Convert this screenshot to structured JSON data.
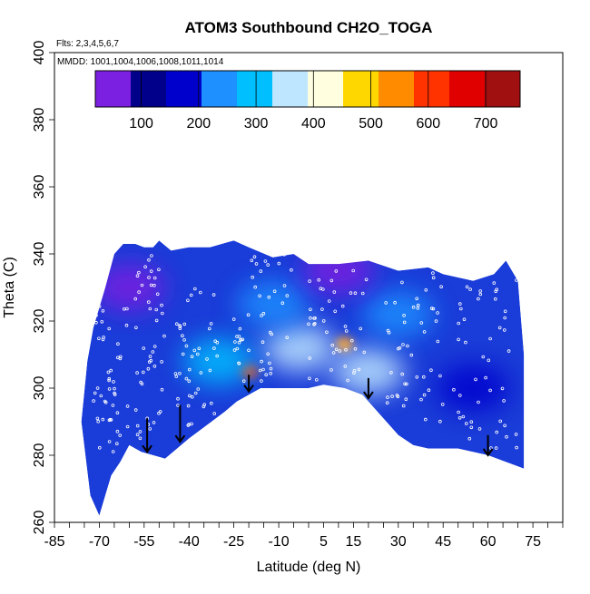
{
  "chart_data": {
    "type": "heatmap",
    "title": "ATOM3 Southbound CH2O_TOGA",
    "subtitle_lines": [
      "Flts: 2,3,4,5,6,7",
      "MMDD: 1001,1004,1006,1008,1011,1014"
    ],
    "xlabel": "Latitude (deg N)",
    "ylabel": "Theta (C)",
    "xlim": [
      -85,
      85
    ],
    "ylim": [
      260,
      400
    ],
    "x_ticks": [
      -85,
      -70,
      -55,
      -40,
      -25,
      -10,
      5,
      15,
      30,
      45,
      60,
      75
    ],
    "y_ticks": [
      260,
      280,
      300,
      320,
      340,
      360,
      380,
      400
    ],
    "colorbar": {
      "vmin": 20,
      "vmax": 760,
      "tick_values": [
        100,
        200,
        300,
        400,
        500,
        600,
        700
      ],
      "colors": [
        "#7b1fe0",
        "#00008b",
        "#0000cd",
        "#1e90ff",
        "#00bfff",
        "#bfe6ff",
        "#ffffe0",
        "#ffd700",
        "#ff8c00",
        "#ff3300",
        "#e00000",
        "#a01010"
      ]
    },
    "curtain": {
      "top_edge": [
        [
          -74,
          308
        ],
        [
          -72,
          318
        ],
        [
          -68,
          330
        ],
        [
          -65,
          340
        ],
        [
          -62,
          343
        ],
        [
          -58,
          343
        ],
        [
          -55,
          342
        ],
        [
          -52,
          342
        ],
        [
          -50,
          344
        ],
        [
          -46,
          341
        ],
        [
          -40,
          342
        ],
        [
          -33,
          342
        ],
        [
          -25,
          344
        ],
        [
          -20,
          342
        ],
        [
          -12,
          339
        ],
        [
          -5,
          340
        ],
        [
          0,
          337
        ],
        [
          10,
          337
        ],
        [
          20,
          338
        ],
        [
          30,
          335
        ],
        [
          40,
          336
        ],
        [
          45,
          334
        ],
        [
          55,
          332
        ],
        [
          62,
          334
        ],
        [
          66,
          338
        ],
        [
          70,
          332
        ],
        [
          72,
          310
        ]
      ],
      "bottom_edge": [
        [
          72,
          276
        ],
        [
          66,
          278
        ],
        [
          60,
          280
        ],
        [
          50,
          282
        ],
        [
          44,
          282
        ],
        [
          40,
          282
        ],
        [
          35,
          283
        ],
        [
          30,
          286
        ],
        [
          24,
          292
        ],
        [
          18,
          298
        ],
        [
          12,
          300
        ],
        [
          5,
          301
        ],
        [
          0,
          300
        ],
        [
          -8,
          300
        ],
        [
          -16,
          300
        ],
        [
          -20,
          298
        ],
        [
          -24,
          296
        ],
        [
          -28,
          293
        ],
        [
          -34,
          289
        ],
        [
          -40,
          285
        ],
        [
          -44,
          282
        ],
        [
          -48,
          279
        ],
        [
          -52,
          280
        ],
        [
          -56,
          281
        ],
        [
          -60,
          283
        ],
        [
          -63,
          278
        ],
        [
          -66,
          274
        ],
        [
          -68,
          268
        ],
        [
          -70,
          262
        ],
        [
          -73,
          268
        ],
        [
          -76,
          290
        ]
      ]
    },
    "features": [
      {
        "lat": -20,
        "theta": 305,
        "value": 620
      },
      {
        "lat": 12,
        "theta": 313,
        "value": 560
      },
      {
        "lat": -3,
        "theta": 312,
        "value": 360
      },
      {
        "lat": 20,
        "theta": 305,
        "value": 330
      },
      {
        "lat": -30,
        "theta": 308,
        "value": 290
      },
      {
        "lat": 30,
        "theta": 322,
        "value": 250
      },
      {
        "lat": -12,
        "theta": 325,
        "value": 260
      },
      {
        "lat": -60,
        "theta": 330,
        "value": 60
      },
      {
        "lat": 55,
        "theta": 300,
        "value": 170
      },
      {
        "lat": 10,
        "theta": 335,
        "value": 60
      }
    ],
    "arrows": [
      {
        "lat": -54,
        "theta_top": 291,
        "theta_tip": 281
      },
      {
        "lat": -43,
        "theta_top": 295,
        "theta_tip": 284
      },
      {
        "lat": -20,
        "theta_top": 304,
        "theta_tip": 299
      },
      {
        "lat": 20,
        "theta_top": 303,
        "theta_tip": 297
      },
      {
        "lat": 60,
        "theta_top": 286,
        "theta_tip": 280
      }
    ],
    "flight_tracks": [
      {
        "lat_start": -72,
        "lat_end": -60,
        "theta_low": 280,
        "theta_high": 325
      },
      {
        "lat_start": -58,
        "lat_end": -48,
        "theta_low": 285,
        "theta_high": 340
      },
      {
        "lat_start": -45,
        "lat_end": -30,
        "theta_low": 288,
        "theta_high": 330
      },
      {
        "lat_start": -25,
        "lat_end": -5,
        "theta_low": 302,
        "theta_high": 340
      },
      {
        "lat_start": 0,
        "lat_end": 20,
        "theta_low": 302,
        "theta_high": 340
      },
      {
        "lat_start": 25,
        "lat_end": 45,
        "theta_low": 290,
        "theta_high": 335
      },
      {
        "lat_start": 48,
        "lat_end": 70,
        "theta_low": 282,
        "theta_high": 333
      }
    ]
  }
}
